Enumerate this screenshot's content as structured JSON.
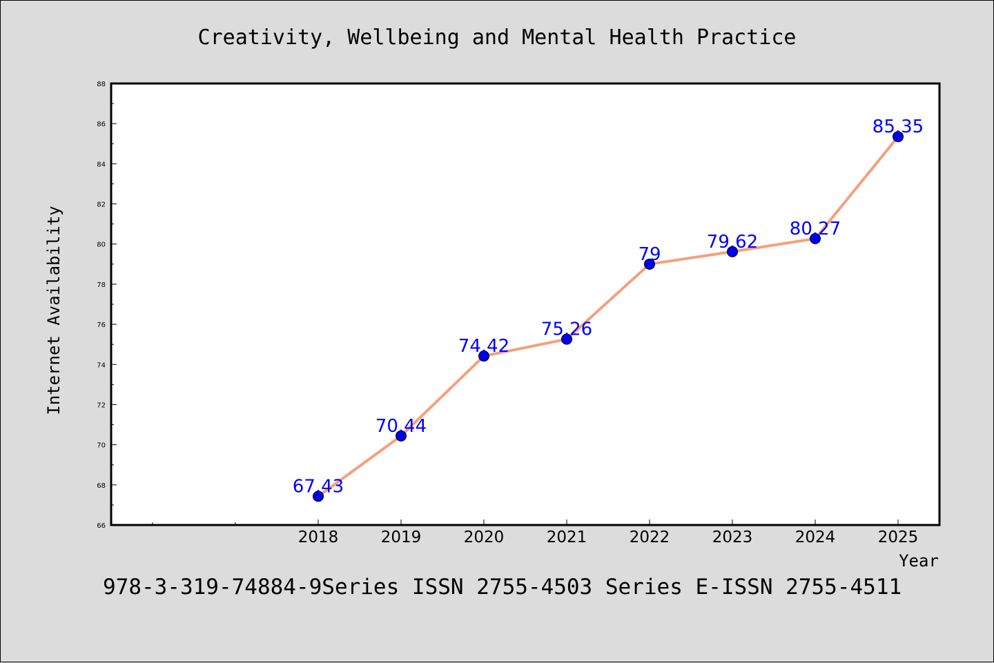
{
  "chart_data": {
    "type": "line",
    "title": "Creativity, Wellbeing and Mental Health Practice",
    "xlabel": "Year",
    "ylabel": "Internet Availability",
    "x": [
      "2018",
      "2019",
      "2020",
      "2021",
      "2022",
      "2023",
      "2024",
      "2025"
    ],
    "series": [
      {
        "values": [
          67.43,
          70.44,
          74.42,
          75.26,
          79,
          79.62,
          80.27,
          85.35
        ],
        "labels": [
          "67.43",
          "70.44",
          "74.42",
          "75.26",
          "79",
          "79.62",
          "80.27",
          "85.35"
        ]
      }
    ],
    "ylim": [
      66,
      88
    ],
    "yticks": [
      "66",
      "68",
      "70",
      "72",
      "74",
      "76",
      "78",
      "80",
      "82",
      "84",
      "86",
      "88"
    ],
    "grid": false,
    "legend": "none",
    "colors": {
      "line": "#f4a07c",
      "marker": "#0000ee",
      "data_label": "#0000ff",
      "background": "#dcdcdc",
      "plot_background": "#ffffff"
    }
  },
  "footer": {
    "text": "978-3-319-74884-9Series ISSN 2755-4503 Series E-ISSN 2755-4511"
  }
}
